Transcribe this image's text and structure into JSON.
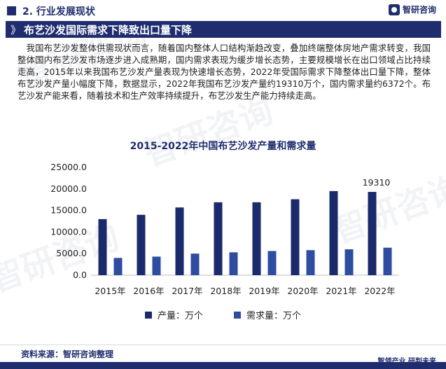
{
  "header": {
    "section": "2. 行业发展现状",
    "brand": "智研咨询",
    "brand_icon": "logo-icon"
  },
  "banner": {
    "chevron": "》",
    "title": "布艺沙发国际需求下降致出口量下降"
  },
  "paragraph": "我国布艺沙发整体供需现状而言，随着国内整体人口结构渐趋改变，叠加终端整体房地产需求转变，我国整体国内布艺沙发市场逐步进入成熟期，国内需求表现为缓步增长态势，主要规模增长在出口领域占比持续走高，2015年以来我国布艺沙发产量表现为快速增长态势，2022年受国际需求下降整体出口量下降，整体布艺沙发产量小幅度下降，数据显示，2022年我国布艺沙发产量约19310万个，国内需求量约6372个。布艺沙发产能来看，随着技术和生产效率持续提升，布艺沙发生产能力持续走高。",
  "watermark": [
    "智研咨询",
    "www.chyxx.com"
  ],
  "colors": {
    "primary": "#1f2d6e",
    "series1": "#1b2a6b",
    "series2": "#2e4da0"
  },
  "chart_data": {
    "type": "bar",
    "title": "2015-2022年中国布艺沙发产量和需求量",
    "categories": [
      "2015年",
      "2016年",
      "2017年",
      "2018年",
      "2019年",
      "2020年",
      "2021年",
      "2022年"
    ],
    "series": [
      {
        "name": "产量：万个",
        "values": [
          13000,
          14000,
          15700,
          16900,
          16900,
          17600,
          19500,
          19310
        ]
      },
      {
        "name": "需求量：万个",
        "values": [
          4000,
          4300,
          5000,
          5300,
          5600,
          5800,
          6000,
          6372
        ]
      }
    ],
    "yticks": [
      "0.0",
      "5000.0",
      "10000.0",
      "15000.0",
      "20000.0",
      "25000.0"
    ],
    "ylim": [
      0,
      25000
    ],
    "data_labels": [
      {
        "series": 0,
        "index": 7,
        "text": "19310"
      }
    ],
    "grid": false,
    "legend": "bottom"
  },
  "source": "资料来源：智研咨询整理",
  "slogan": "智领产业  研判未来"
}
